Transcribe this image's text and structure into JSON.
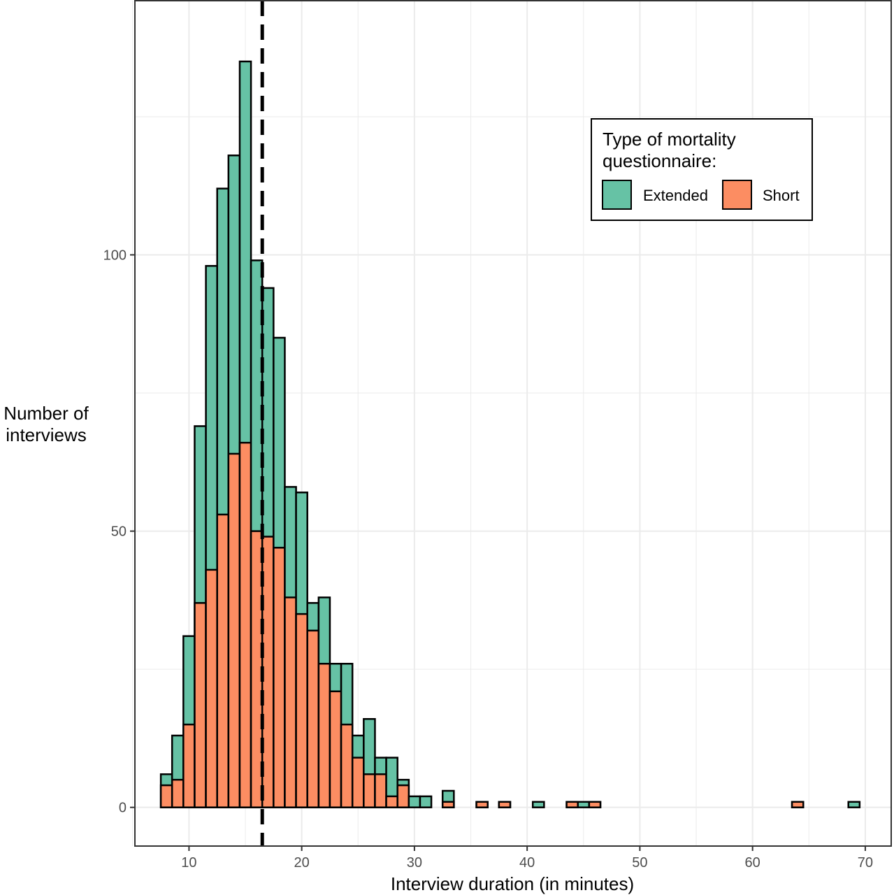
{
  "chart_data": {
    "type": "bar",
    "stacked": true,
    "histogram": true,
    "bin_width": 1,
    "xlabel": "Interview duration (in minutes)",
    "ylabel_lines": [
      "Number of",
      "interviews"
    ],
    "xlim": [
      5.2,
      72.3
    ],
    "ylim": [
      -7,
      146
    ],
    "x_ticks": [
      10,
      20,
      30,
      40,
      50,
      60,
      70
    ],
    "x_tick_labels": [
      "10",
      "20",
      "30",
      "40",
      "50",
      "60",
      "70"
    ],
    "y_ticks": [
      0,
      50,
      100
    ],
    "y_tick_labels": [
      "0",
      "50",
      "100"
    ],
    "grid": true,
    "reference_line": {
      "x": 16.5,
      "style": "dashed"
    },
    "legend": {
      "title_lines": [
        "Type of mortality",
        "questionnaire:"
      ],
      "placement": "top-right",
      "entries": [
        {
          "label": "Extended",
          "color": "#66c2a5"
        },
        {
          "label": "Short",
          "color": "#fc8d62"
        }
      ]
    },
    "x": [
      8,
      9,
      10,
      11,
      12,
      13,
      14,
      15,
      16,
      17,
      18,
      19,
      20,
      21,
      22,
      23,
      24,
      25,
      26,
      27,
      28,
      29,
      30,
      31,
      33,
      36,
      38,
      41,
      44,
      45,
      46,
      64,
      69
    ],
    "series": [
      {
        "name": "Short",
        "color": "#fc8d62",
        "values": [
          4,
          5,
          15,
          37,
          43,
          53,
          64,
          66,
          50,
          49,
          47,
          38,
          35,
          32,
          26,
          21,
          15,
          9,
          6,
          6,
          2,
          4,
          0,
          0,
          1,
          1,
          1,
          0,
          1,
          0,
          1,
          1,
          0
        ]
      },
      {
        "name": "Extended",
        "color": "#66c2a5",
        "values": [
          2,
          8,
          16,
          32,
          55,
          59,
          54,
          69,
          49,
          45,
          38,
          20,
          22,
          5,
          12,
          5,
          11,
          4,
          10,
          3,
          7,
          1,
          2,
          2,
          2,
          0,
          0,
          1,
          0,
          1,
          0,
          0,
          1
        ]
      }
    ]
  }
}
